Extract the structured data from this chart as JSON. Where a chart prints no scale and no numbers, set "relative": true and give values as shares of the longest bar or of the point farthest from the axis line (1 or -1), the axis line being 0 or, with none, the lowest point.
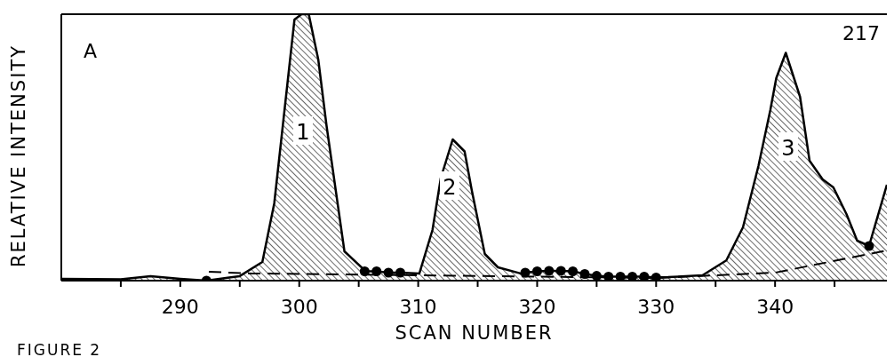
{
  "chart_data": {
    "type": "area",
    "relative": true,
    "xlabel": "SCAN NUMBER",
    "ylabel": "RELATIVE INTENSITY",
    "xlim": [
      280,
      349.4
    ],
    "xticks": [
      {
        "value": 285,
        "label": null
      },
      290,
      {
        "value": 295,
        "label": null
      },
      300,
      {
        "value": 305,
        "label": null
      },
      310,
      {
        "value": 315,
        "label": null
      },
      320,
      {
        "value": 325,
        "label": null
      },
      330,
      {
        "value": 335,
        "label": null
      },
      340,
      {
        "value": 345,
        "label": null
      }
    ],
    "series": [
      {
        "color": "#000000",
        "x": [
          280,
          285,
          287.5,
          290,
          292.2,
          295,
          296.9,
          297.9,
          299.6,
          300.2,
          300.8,
          301.6,
          302.3,
          303.8,
          305.3,
          305.5,
          306.5,
          307.5,
          308.5,
          310.1,
          311.2,
          311.9,
          312.9,
          313.9,
          314.5,
          315.6,
          316.7,
          318.6,
          319,
          320,
          321,
          322,
          323,
          324,
          325,
          326,
          327,
          328,
          329,
          330,
          331,
          333.9,
          335.9,
          337.3,
          338.6,
          339.6,
          340.1,
          340.9,
          342.1,
          342.9,
          344,
          344.9,
          346,
          346.9,
          347.9,
          349.4
        ],
        "values": [
          0.007,
          0.005,
          0.017,
          0.007,
          0,
          0.017,
          0.07,
          0.29,
          0.98,
          1,
          1,
          0.83,
          0.58,
          0.11,
          0.047,
          0.035,
          0.035,
          0.03,
          0.03,
          0.027,
          0.19,
          0.385,
          0.53,
          0.485,
          0.34,
          0.1,
          0.05,
          0.027,
          0.03,
          0.035,
          0.037,
          0.037,
          0.035,
          0.025,
          0.018,
          0.015,
          0.015,
          0.015,
          0.015,
          0.012,
          0.013,
          0.02,
          0.076,
          0.2,
          0.43,
          0.64,
          0.76,
          0.855,
          0.69,
          0.45,
          0.38,
          0.35,
          0.25,
          0.15,
          0.13,
          0.36
        ]
      },
      {
        "type": "line",
        "color": "#000000",
        "line_style": "dashed",
        "x": [
          292.4,
          296,
          310,
          330,
          340,
          349.4
        ],
        "values": [
          0.033,
          0.027,
          0.02,
          0.01,
          0.03,
          0.113
        ]
      },
      {
        "type": "scatter",
        "color": "#000000",
        "marker": "circle",
        "x": [
          292.2,
          305.5,
          306.5,
          307.5,
          308.5,
          319,
          320,
          321,
          322,
          323,
          324,
          325,
          326,
          327,
          328,
          329,
          330,
          347.9
        ],
        "values": [
          0,
          0.035,
          0.035,
          0.03,
          0.03,
          0.03,
          0.035,
          0.037,
          0.037,
          0.035,
          0.025,
          0.018,
          0.015,
          0.015,
          0.015,
          0.015,
          0.012,
          0.13
        ]
      }
    ],
    "annotations": [
      "A",
      "217",
      "1",
      "2",
      "3",
      "FIGURE 2"
    ]
  }
}
